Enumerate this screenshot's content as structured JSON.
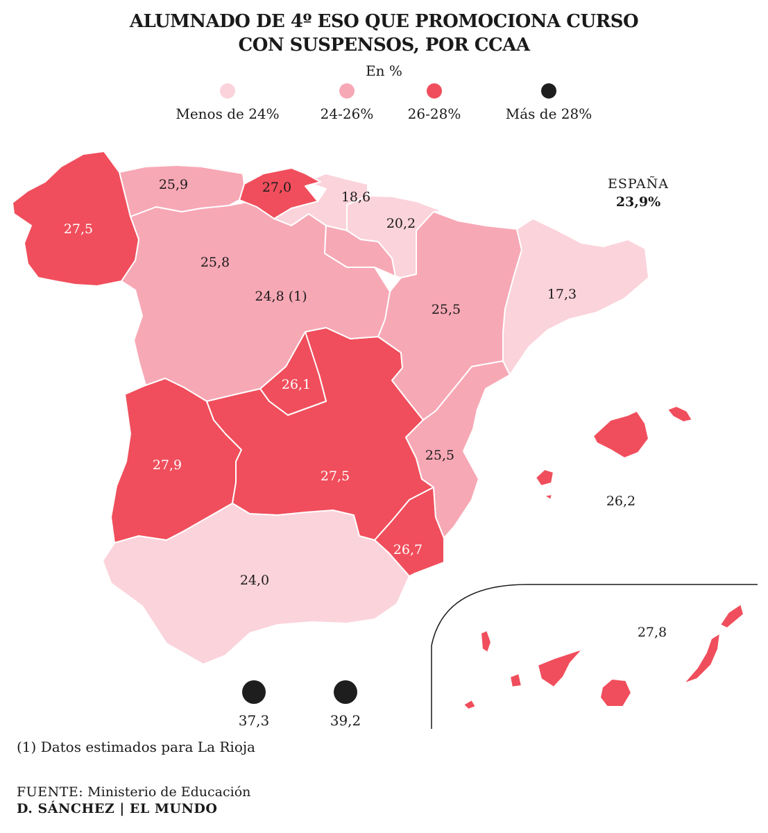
{
  "title_line1": "ALUMNADO DE 4º ESO QUE PROMOCIONA CURSO",
  "title_line2": "CON SUSPENSOS, POR CCAA",
  "subtitle": "En %",
  "legend": [
    {
      "label": "Menos de 24%",
      "color": "#fbd3db"
    },
    {
      "label": "24-26%",
      "color": "#f7a8b5"
    },
    {
      "label": "26-28%",
      "color": "#f04e5c"
    },
    {
      "label": "Más de 28%",
      "color": "#1e1e1e"
    }
  ],
  "spain": {
    "name": "ESPAÑA",
    "value": "23,9%"
  },
  "regions": [
    {
      "name": "Galicia",
      "value": "27,5",
      "color": "#f04e5c"
    },
    {
      "name": "Asturias",
      "value": "25,9",
      "color": "#f7a8b5"
    },
    {
      "name": "Cantabria",
      "value": "27,0",
      "color": "#f04e5c"
    },
    {
      "name": "País Vasco",
      "value": "18,6",
      "color": "#fbd3db"
    },
    {
      "name": "Navarra",
      "value": "20,2",
      "color": "#fbd3db"
    },
    {
      "name": "Castilla y León",
      "value": "25,8",
      "color": "#f7a8b5"
    },
    {
      "name": "La Rioja",
      "value": "24,8 (1)",
      "color": "#f7a8b5"
    },
    {
      "name": "Aragón",
      "value": "25,5",
      "color": "#f7a8b5"
    },
    {
      "name": "Cataluña",
      "value": "17,3",
      "color": "#fbd3db"
    },
    {
      "name": "Madrid",
      "value": "26,1",
      "color": "#f04e5c"
    },
    {
      "name": "Extremadura",
      "value": "27,9",
      "color": "#f04e5c"
    },
    {
      "name": "Castilla-La Mancha",
      "value": "27,5",
      "color": "#f04e5c"
    },
    {
      "name": "Comunidad Valenciana",
      "value": "25,5",
      "color": "#f7a8b5"
    },
    {
      "name": "Murcia",
      "value": "26,7",
      "color": "#f04e5c"
    },
    {
      "name": "Andalucía",
      "value": "24,0",
      "color": "#fbd3db"
    },
    {
      "name": "Baleares",
      "value": "26,2",
      "color": "#f04e5c"
    },
    {
      "name": "Canarias",
      "value": "27,8",
      "color": "#f04e5c"
    }
  ],
  "enclaves": [
    {
      "name": "Ceuta",
      "value": "37,3",
      "color": "#1e1e1e"
    },
    {
      "name": "Melilla",
      "value": "39,2",
      "color": "#1e1e1e"
    }
  ],
  "note": "(1) Datos estimados para La Rioja",
  "source_label": "FUENTE:",
  "source_text": " Ministerio de Educación",
  "credit": "D. SÁNCHEZ | EL MUNDO"
}
